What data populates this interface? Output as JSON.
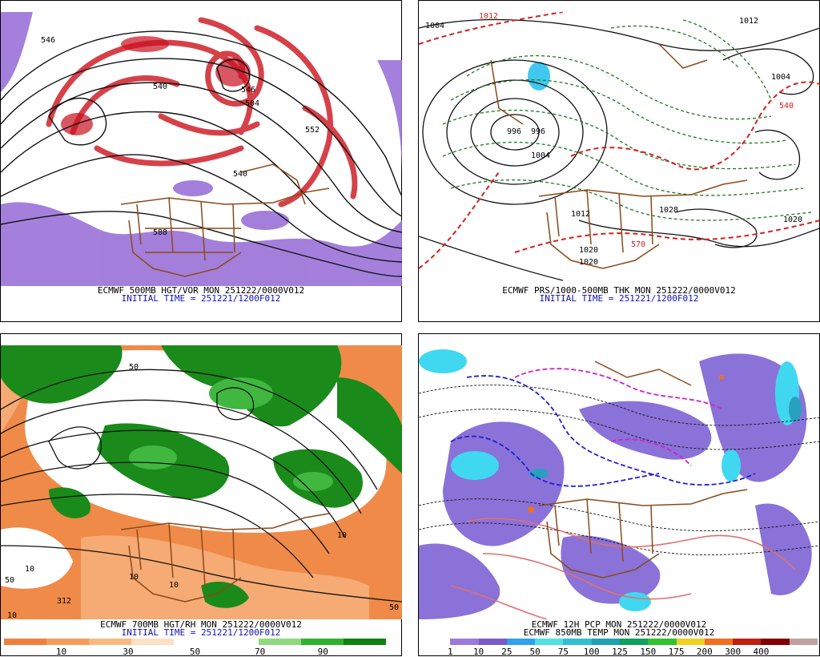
{
  "panels": {
    "top_left": {
      "caption": "ECMWF 500MB HGT/VOR MON 251222/0000V012",
      "initial_time": "INITIAL TIME = 251221/1200F012",
      "contour_labels": [
        "546",
        "540",
        "546",
        "552",
        "504",
        "540",
        "588"
      ]
    },
    "top_right": {
      "caption": "ECMWF PRS/1000-500MB THK MON 251222/0000V012",
      "initial_time": "INITIAL TIME = 251221/1200F012",
      "contour_labels": [
        "1012",
        "1004",
        "1012",
        "996",
        "996",
        "1004",
        "1012",
        "1020",
        "1028",
        "1020",
        "540",
        "570",
        "1004",
        "1020"
      ]
    },
    "bottom_left": {
      "caption": "ECMWF 700MB HGT/RH MON 251222/0000V012",
      "initial_time": "INITIAL TIME = 251221/1200F012",
      "contour_labels": [
        "10",
        "10",
        "10",
        "312",
        "10",
        "50",
        "50",
        "10",
        "50"
      ],
      "colorbar": {
        "labels": [
          "10",
          "30",
          "50",
          "70",
          "90"
        ],
        "colors": [
          "#f08040",
          "#f49c5c",
          "#f8b880",
          "#fde0c4",
          "#ffffff",
          "#ffffff",
          "#90d880",
          "#30b030",
          "#108010"
        ]
      }
    },
    "bottom_right": {
      "caption": "ECMWF 12H PCP MON 251222/0000V012",
      "caption2": "ECMWF 850MB TEMP MON 251222/0000V012",
      "colorbar": {
        "labels": [
          "1",
          "10",
          "25",
          "50",
          "75",
          "100",
          "125",
          "150",
          "175",
          "200",
          "300",
          "400"
        ],
        "colors": [
          "#ffffff",
          "#9a7ad8",
          "#7a5ac8",
          "#30a0f0",
          "#50e0e0",
          "#30c0d0",
          "#20a0b0",
          "#10a060",
          "#30c030",
          "#f0d020",
          "#f07020",
          "#c02010",
          "#800000",
          "#c0a0a0"
        ]
      }
    }
  }
}
